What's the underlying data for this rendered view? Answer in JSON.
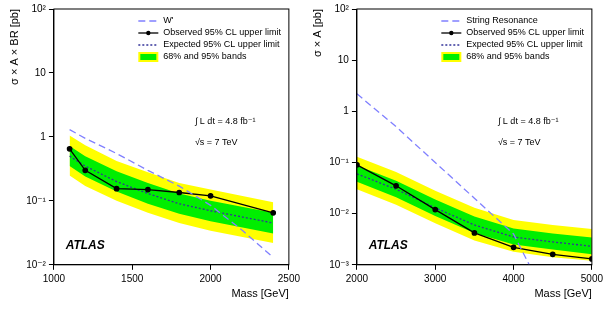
{
  "chart_data": [
    {
      "type": "line",
      "x_label": "Mass [GeV]",
      "y_label": "σ × A × BR [pb]",
      "log": "y",
      "grid": false,
      "legend": "upper right",
      "xlim": [
        1000,
        2500
      ],
      "xticks": [
        1000,
        1500,
        2000,
        2500
      ],
      "ylim": [
        0.01,
        100
      ],
      "yticks": [
        {
          "value": 0.01,
          "label": "10⁻²"
        },
        {
          "value": 0.1,
          "label": "10⁻¹"
        },
        1,
        10,
        {
          "value": 100,
          "label": "10²"
        }
      ],
      "series": [
        {
          "name": "W'",
          "color": "#8080ff",
          "line_style": "dashed",
          "marker": "none",
          "x": [
            1100,
            1200,
            1400,
            1600,
            1800,
            2000,
            2200,
            2400
          ],
          "values": [
            1.3,
            0.95,
            0.55,
            0.3,
            0.17,
            0.085,
            0.035,
            0.013
          ]
        },
        {
          "name": "Observed 95% CL upper limit",
          "color": "#000000",
          "line_style": "solid",
          "marker": "circle",
          "x": [
            1100,
            1200,
            1400,
            1600,
            1800,
            2000,
            2400
          ],
          "values": [
            0.65,
            0.3,
            0.155,
            0.15,
            0.135,
            0.12,
            0.065
          ]
        },
        {
          "name": "Expected 95% CL upper limit",
          "color": "#333399",
          "line_style": "dotted",
          "marker": "none",
          "x": [
            1100,
            1200,
            1400,
            1600,
            1800,
            2000,
            2400
          ],
          "values": [
            0.5,
            0.35,
            0.2,
            0.13,
            0.09,
            0.07,
            0.045
          ]
        }
      ],
      "bands": {
        "name": "68% and 95% bands",
        "colors": [
          "#00ee00",
          "#ffff00"
        ],
        "x": [
          1100,
          1200,
          1400,
          1600,
          1800,
          2000,
          2400
        ],
        "lower_68": [
          0.35,
          0.24,
          0.14,
          0.09,
          0.063,
          0.048,
          0.031
        ],
        "upper_68": [
          0.72,
          0.5,
          0.29,
          0.19,
          0.13,
          0.1,
          0.065
        ],
        "lower_95": [
          0.25,
          0.17,
          0.1,
          0.065,
          0.045,
          0.034,
          0.022
        ],
        "upper_95": [
          1.05,
          0.74,
          0.42,
          0.28,
          0.19,
          0.15,
          0.095
        ]
      },
      "annotations": [
        "∫ L dt = 4.8 fb⁻¹",
        "√s = 7 TeV",
        "ATLAS"
      ]
    },
    {
      "type": "line",
      "x_label": "Mass [GeV]",
      "y_label": "σ × A [pb]",
      "log": "y",
      "grid": false,
      "legend": "upper right",
      "xlim": [
        2000,
        5000
      ],
      "xticks": [
        2000,
        3000,
        4000,
        5000
      ],
      "ylim": [
        0.001,
        100
      ],
      "yticks": [
        {
          "value": 0.001,
          "label": "10⁻³"
        },
        {
          "value": 0.01,
          "label": "10⁻²"
        },
        {
          "value": 0.1,
          "label": "10⁻¹"
        },
        1,
        10,
        {
          "value": 100,
          "label": "10²"
        }
      ],
      "series": [
        {
          "name": "String Resonance",
          "color": "#8080ff",
          "line_style": "dashed",
          "marker": "none",
          "x": [
            2000,
            2500,
            3000,
            3500,
            4000,
            4200
          ],
          "values": [
            2.2,
            0.5,
            0.1,
            0.02,
            0.004,
            0.001
          ]
        },
        {
          "name": "Observed 95% CL upper limit",
          "color": "#000000",
          "line_style": "solid",
          "marker": "circle",
          "x": [
            2000,
            2500,
            3000,
            3500,
            4000,
            4500,
            5000
          ],
          "values": [
            0.09,
            0.035,
            0.012,
            0.0042,
            0.0022,
            0.0016,
            0.0013
          ]
        },
        {
          "name": "Expected 95% CL upper limit",
          "color": "#333399",
          "line_style": "dotted",
          "marker": "none",
          "x": [
            2000,
            2500,
            3000,
            3500,
            4000,
            4500,
            5000
          ],
          "values": [
            0.06,
            0.03,
            0.013,
            0.006,
            0.0035,
            0.0028,
            0.0023
          ]
        }
      ],
      "bands": {
        "name": "68% and 95% bands",
        "colors": [
          "#00ee00",
          "#ffff00"
        ],
        "x": [
          2000,
          2500,
          3000,
          3500,
          4000,
          4500,
          5000
        ],
        "lower_68": [
          0.042,
          0.021,
          0.009,
          0.0042,
          0.0025,
          0.002,
          0.0016
        ],
        "upper_68": [
          0.087,
          0.044,
          0.019,
          0.0088,
          0.0051,
          0.0041,
          0.0034
        ],
        "lower_95": [
          0.03,
          0.015,
          0.0065,
          0.003,
          0.0018,
          0.0014,
          0.0012
        ],
        "upper_95": [
          0.13,
          0.065,
          0.028,
          0.013,
          0.0075,
          0.006,
          0.005
        ]
      },
      "annotations": [
        "∫ L dt = 4.8 fb⁻¹",
        "√s = 7 TeV",
        "ATLAS"
      ]
    }
  ]
}
